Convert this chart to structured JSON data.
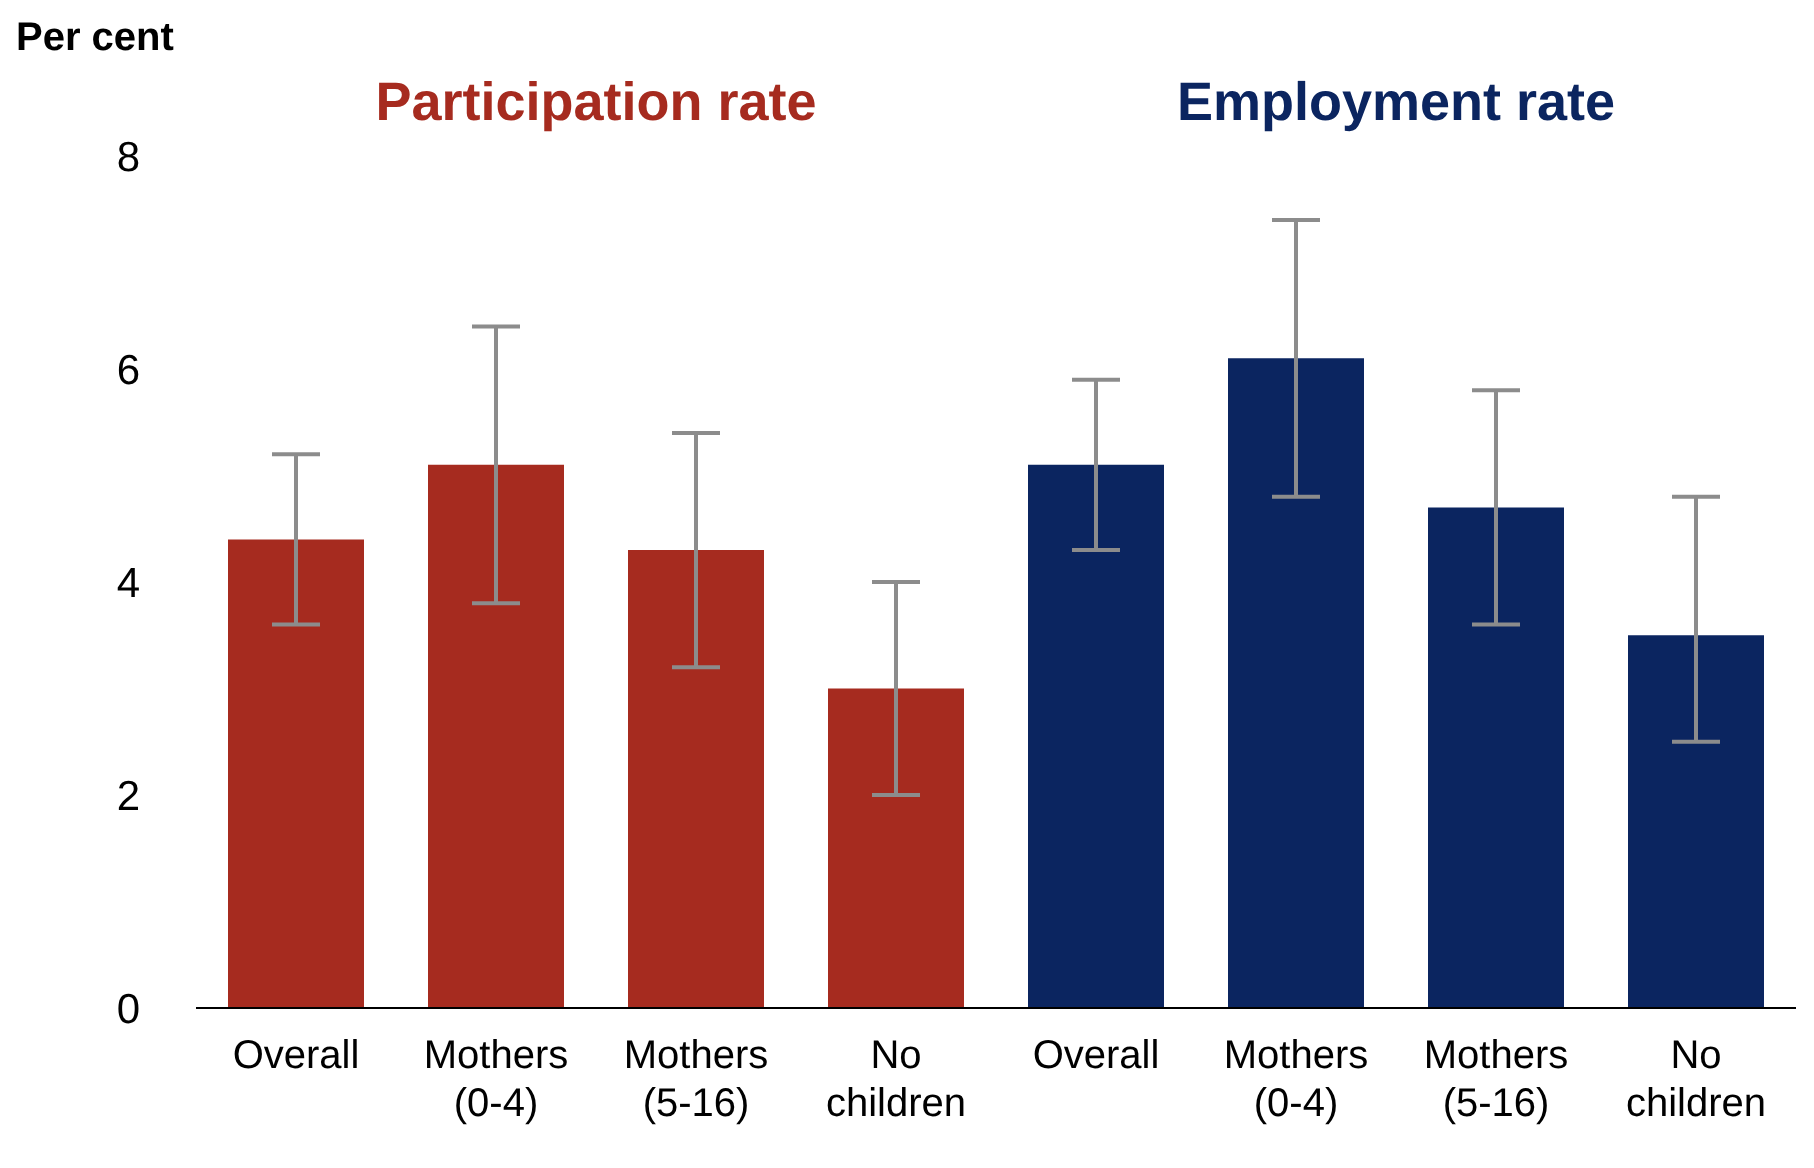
{
  "chart_data": {
    "type": "bar",
    "ylabel": "Per cent",
    "categories": [
      "Overall",
      "Mothers (0-4)",
      "Mothers (5-16)",
      "No children",
      "Overall",
      "Mothers (0-4)",
      "Mothers (5-16)",
      "No children"
    ],
    "stacked": true,
    "ylim": [
      0,
      8
    ],
    "yticks": [
      0,
      2,
      4,
      6,
      8
    ],
    "grid": false,
    "series": [
      {
        "name": "Participation rate",
        "color": "#a62b1f",
        "values": [
          4.4,
          5.1,
          4.3,
          3.0,
          null,
          null,
          null,
          null
        ],
        "errors": [
          [
            3.6,
            5.2
          ],
          [
            3.8,
            6.4
          ],
          [
            3.2,
            5.4
          ],
          [
            2.0,
            4.0
          ],
          null,
          null,
          null,
          null
        ]
      },
      {
        "name": "Employment rate",
        "color": "#0b2560",
        "values": [
          null,
          null,
          null,
          null,
          5.1,
          6.1,
          4.7,
          3.5
        ],
        "errors": [
          null,
          null,
          null,
          null,
          [
            4.3,
            5.9
          ],
          [
            4.8,
            7.4
          ],
          [
            3.6,
            5.8
          ],
          [
            2.5,
            4.8
          ]
        ]
      }
    ]
  }
}
